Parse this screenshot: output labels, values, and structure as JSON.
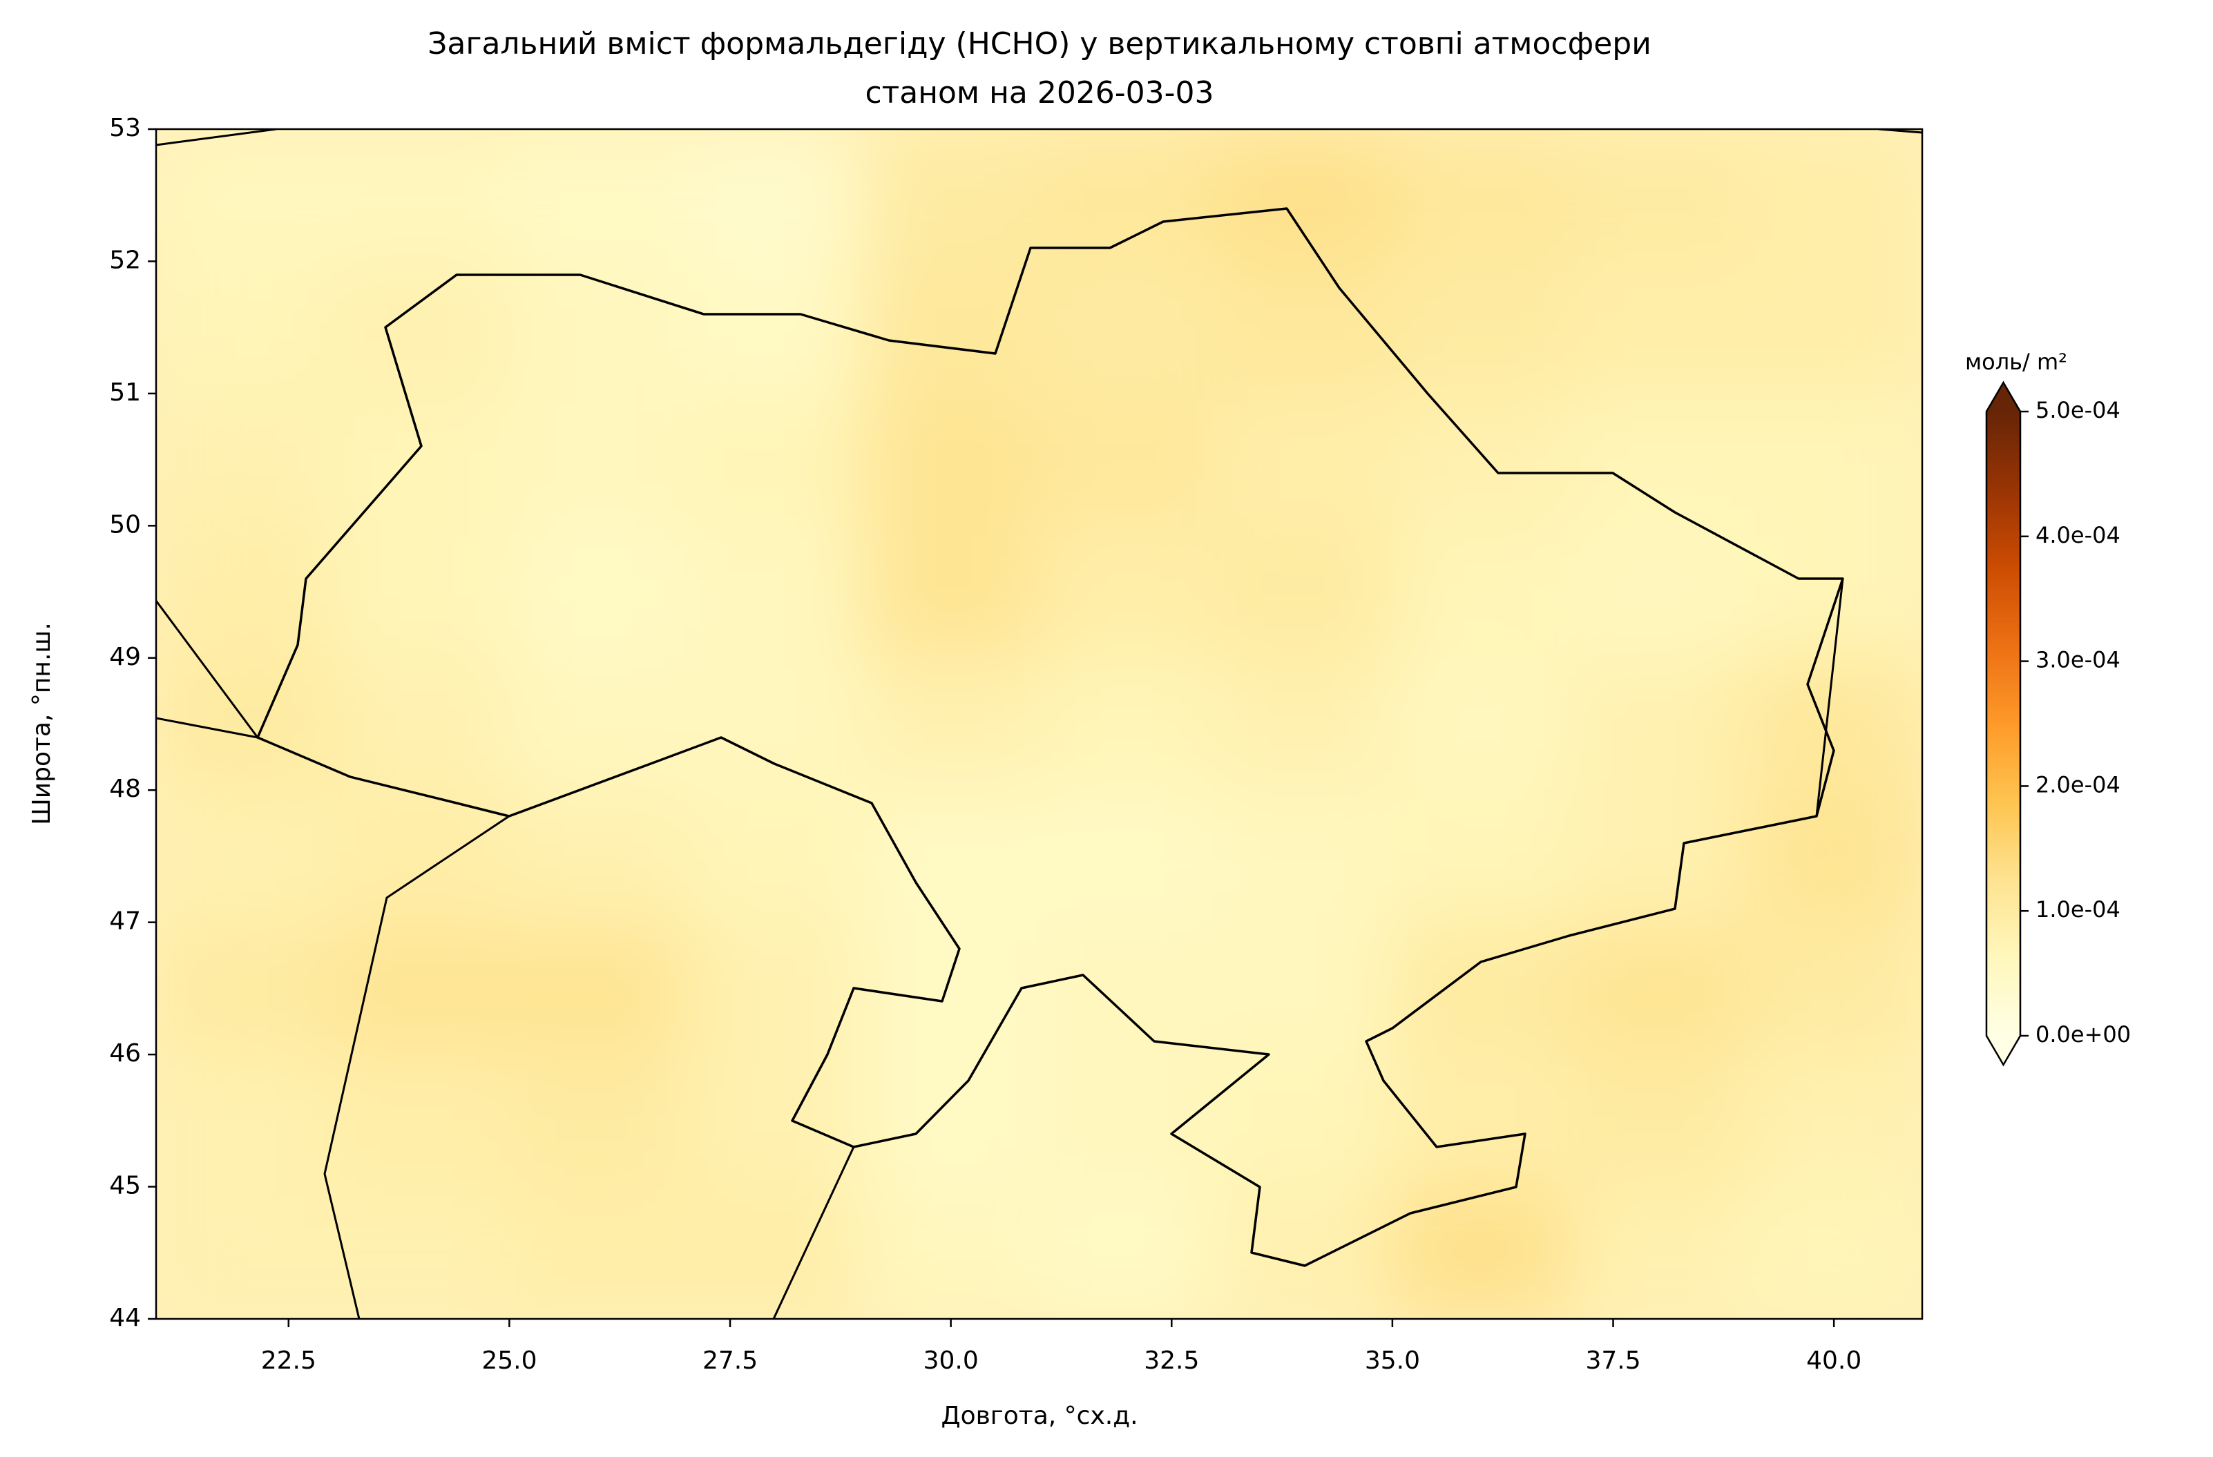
{
  "chart_data": {
    "type": "map",
    "title": "Загальний вміст формальдегіду (HCHO) у вертикальному стовпі атмосфери",
    "subtitle": "станом на 2026-03-03",
    "x_label": "Довгота, °сх.д.",
    "y_label": "Широта, °пн.ш.",
    "xlim": [
      21,
      41
    ],
    "ylim": [
      44,
      53
    ],
    "xticks": [
      22.5,
      {
        "value": 25,
        "label": "25.0"
      },
      27.5,
      {
        "value": 30,
        "label": "30.0"
      },
      32.5,
      {
        "value": 35,
        "label": "35.0"
      },
      37.5,
      {
        "value": 40,
        "label": "40.0"
      }
    ],
    "yticks": [
      44,
      45,
      46,
      47,
      48,
      49,
      50,
      51,
      52,
      53
    ],
    "colorbar_label": "моль/ m²",
    "clim": [
      0,
      0.0005
    ],
    "colorbar_ticks": [
      {
        "value": 0,
        "label": "0.0e+00"
      },
      {
        "value": 0.0001,
        "label": "1.0e-04"
      },
      {
        "value": 0.0002,
        "label": "2.0e-04"
      },
      {
        "value": 0.0003,
        "label": "3.0e-04"
      },
      {
        "value": 0.0004,
        "label": "4.0e-04"
      },
      {
        "value": 0.0005,
        "label": "5.0e-04"
      }
    ],
    "colors": [
      "#ffffe5",
      "#fff7bc",
      "#fee391",
      "#fec44f",
      "#fe9929",
      "#ec7014",
      "#cc4c02",
      "#993404",
      "#662506"
    ],
    "field": {
      "lon": [
        22,
        24,
        26,
        28,
        30,
        32,
        34,
        36,
        38,
        40
      ],
      "lat": [
        44.5,
        45.5,
        46.5,
        47.5,
        48.5,
        49.5,
        50.5,
        51.5,
        52.5
      ],
      "values": [
        [
          8e-05,
          8e-05,
          9e-05,
          9e-05,
          6e-05,
          5e-05,
          8e-05,
          0.00013,
          8e-05,
          7e-05
        ],
        [
          8e-05,
          9e-05,
          0.0001,
          8e-05,
          5e-05,
          6e-05,
          7e-05,
          9e-05,
          0.0001,
          8e-05
        ],
        [
          0.0001,
          0.00012,
          0.00012,
          8e-05,
          5e-05,
          6e-05,
          6e-05,
          0.0001,
          0.00012,
          0.0001
        ],
        [
          8e-05,
          9e-05,
          8e-05,
          7e-05,
          5e-05,
          5e-05,
          6e-05,
          7e-05,
          8e-05,
          0.00012
        ],
        [
          0.0001,
          8e-05,
          6e-05,
          6e-05,
          8e-05,
          7e-05,
          8e-05,
          6e-05,
          8e-05,
          0.00011
        ],
        [
          9e-05,
          7e-05,
          5e-05,
          6e-05,
          0.00012,
          9e-05,
          0.0001,
          7e-05,
          6e-05,
          7e-05
        ],
        [
          8e-05,
          7e-05,
          6e-05,
          7e-05,
          0.00012,
          0.00011,
          9e-05,
          8e-05,
          7e-05,
          7e-05
        ],
        [
          7e-05,
          8e-05,
          6e-05,
          5e-05,
          0.00011,
          0.0001,
          0.00011,
          0.0001,
          9e-05,
          9e-05
        ],
        [
          6e-05,
          6e-05,
          5e-05,
          4e-05,
          0.0001,
          0.00011,
          0.00013,
          0.00011,
          0.0001,
          9e-05
        ]
      ]
    }
  }
}
